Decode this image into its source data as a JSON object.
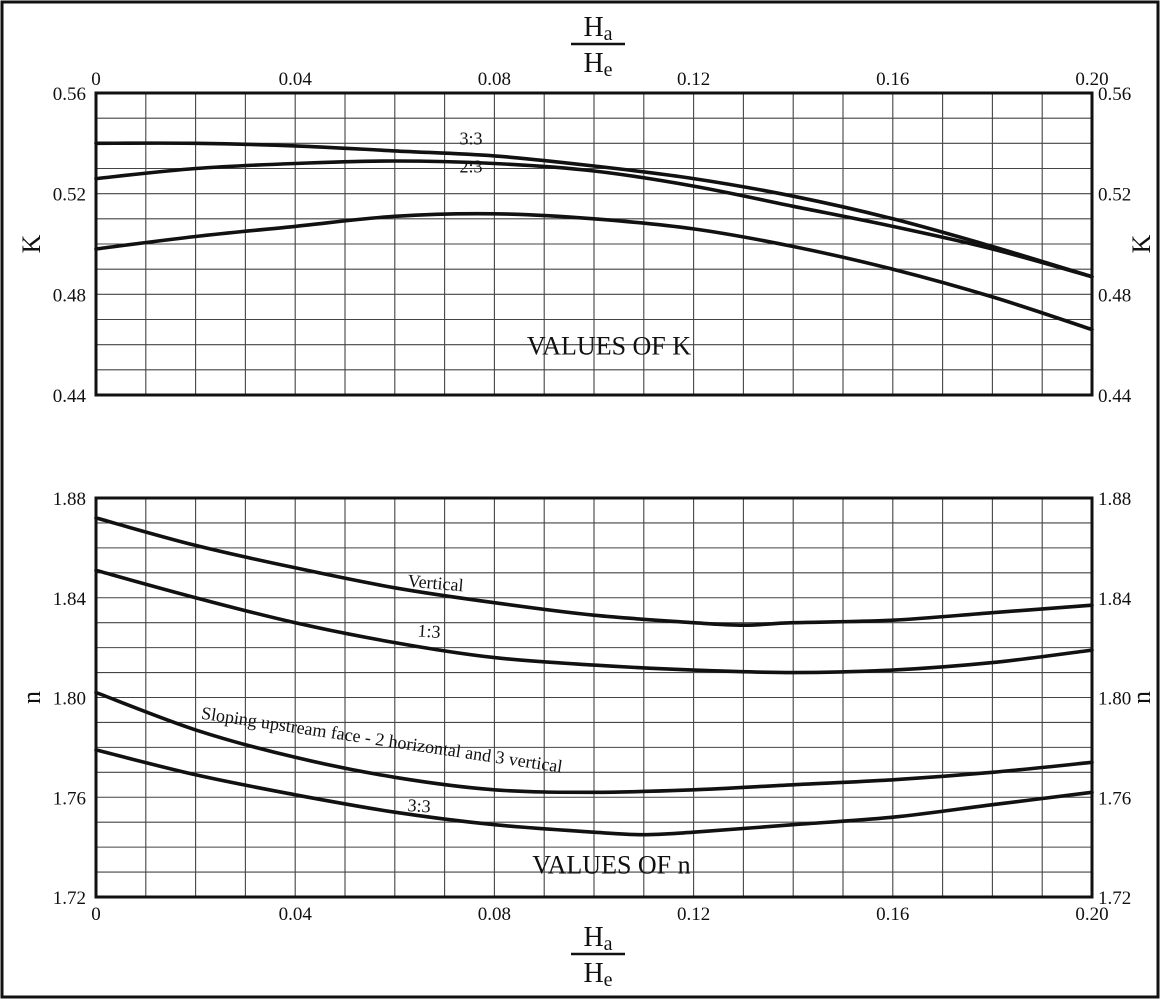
{
  "chart_data": [
    {
      "type": "line",
      "title": "VALUES OF K",
      "xlabel": {
        "num_main": "H",
        "num_sub": "a",
        "den_main": "H",
        "den_sub": "e"
      },
      "ylabel": "K",
      "xlim": [
        0,
        0.2
      ],
      "ylim": [
        0.44,
        0.56
      ],
      "x_ticks": [
        0,
        0.04,
        0.08,
        0.12,
        0.16,
        0.2
      ],
      "x_tick_labels": [
        "0",
        "0.04",
        "0.08",
        "0.12",
        "0.16",
        "0.20"
      ],
      "y_ticks": [
        0.44,
        0.48,
        0.52,
        0.56
      ],
      "y_tick_labels": [
        "0.44",
        "0.48",
        "0.52",
        "0.56"
      ],
      "grid": true,
      "x_minor_step": 0.01,
      "y_minor_step": 0.01,
      "x_axis_position": "top",
      "y_axis_labels_both_sides": true,
      "series": [
        {
          "name": "3:3",
          "x": [
            0,
            0.02,
            0.04,
            0.06,
            0.08,
            0.1,
            0.12,
            0.14,
            0.16,
            0.18,
            0.2
          ],
          "y": [
            0.54,
            0.54,
            0.539,
            0.537,
            0.535,
            0.531,
            0.526,
            0.519,
            0.51,
            0.499,
            0.487
          ]
        },
        {
          "name": "2:3",
          "x": [
            0,
            0.02,
            0.04,
            0.06,
            0.08,
            0.1,
            0.12,
            0.14,
            0.16,
            0.18,
            0.2
          ],
          "y": [
            0.526,
            0.53,
            0.532,
            0.533,
            0.532,
            0.529,
            0.523,
            0.515,
            0.507,
            0.498,
            0.487
          ]
        },
        {
          "name": "",
          "x": [
            0,
            0.02,
            0.04,
            0.06,
            0.08,
            0.1,
            0.12,
            0.14,
            0.16,
            0.18,
            0.2
          ],
          "y": [
            0.498,
            0.503,
            0.507,
            0.511,
            0.512,
            0.51,
            0.506,
            0.499,
            0.49,
            0.479,
            0.466
          ]
        }
      ]
    },
    {
      "type": "line",
      "title": "VALUES OF n",
      "xlabel": {
        "num_main": "H",
        "num_sub": "a",
        "den_main": "H",
        "den_sub": "e"
      },
      "ylabel": "n",
      "xlim": [
        0,
        0.2
      ],
      "ylim": [
        1.72,
        1.88
      ],
      "x_ticks": [
        0,
        0.04,
        0.08,
        0.12,
        0.16,
        0.2
      ],
      "x_tick_labels": [
        "0",
        "0.04",
        "0.08",
        "0.12",
        "0.16",
        "0.20"
      ],
      "y_ticks": [
        1.72,
        1.76,
        1.8,
        1.84,
        1.88
      ],
      "y_tick_labels": [
        "1.72",
        "1.76",
        "1.80",
        "1.84",
        "1.88"
      ],
      "grid": true,
      "x_minor_step": 0.01,
      "y_minor_step": 0.01,
      "x_axis_position": "bottom",
      "y_axis_labels_both_sides": true,
      "series": [
        {
          "name": "Vertical",
          "x": [
            0,
            0.02,
            0.04,
            0.06,
            0.08,
            0.1,
            0.12,
            0.13,
            0.14,
            0.16,
            0.18,
            0.2
          ],
          "y": [
            1.872,
            1.861,
            1.852,
            1.844,
            1.838,
            1.833,
            1.83,
            1.829,
            1.83,
            1.831,
            1.834,
            1.837
          ]
        },
        {
          "name": "1:3",
          "x": [
            0,
            0.02,
            0.04,
            0.06,
            0.08,
            0.1,
            0.12,
            0.14,
            0.16,
            0.18,
            0.2
          ],
          "y": [
            1.851,
            1.84,
            1.83,
            1.822,
            1.816,
            1.813,
            1.811,
            1.81,
            1.811,
            1.814,
            1.819
          ]
        },
        {
          "name": "Sloping upstream face - 2 horizontal and 3 vertical",
          "x": [
            0,
            0.02,
            0.04,
            0.06,
            0.08,
            0.1,
            0.12,
            0.14,
            0.16,
            0.18,
            0.2
          ],
          "y": [
            1.802,
            1.787,
            1.776,
            1.768,
            1.763,
            1.762,
            1.763,
            1.765,
            1.767,
            1.77,
            1.774
          ]
        },
        {
          "name": "3:3",
          "x": [
            0,
            0.02,
            0.04,
            0.06,
            0.08,
            0.1,
            0.11,
            0.12,
            0.14,
            0.16,
            0.18,
            0.2
          ],
          "y": [
            1.779,
            1.769,
            1.761,
            1.754,
            1.749,
            1.746,
            1.745,
            1.746,
            1.749,
            1.752,
            1.757,
            1.762
          ]
        }
      ]
    }
  ]
}
